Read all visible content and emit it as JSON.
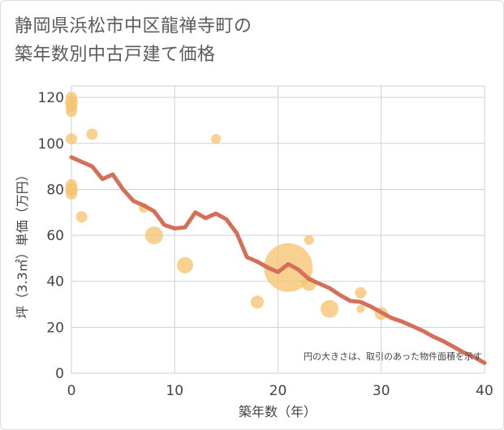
{
  "title": {
    "line1": "静岡県浜松市中区龍禅寺町の",
    "line2": "築年数別中古戸建て価格"
  },
  "chart_data": {
    "type": "scatter+line",
    "xlabel": "築年数（年）",
    "ylabel": "坪（3.3㎡）単価（万円）",
    "xlim": [
      0,
      40
    ],
    "ylim": [
      0,
      125
    ],
    "xticks": [
      "0",
      "10",
      "20",
      "30",
      "40"
    ],
    "yticks": [
      "0",
      "20",
      "40",
      "60",
      "80",
      "100",
      "120"
    ],
    "grid": true,
    "note": "円の大きさは、取引のあった物件面積を示す",
    "bubble_color": "#f5c26b",
    "line_color": "#d4705a",
    "bubbles": [
      {
        "x": 0,
        "y": 120,
        "size": 7
      },
      {
        "x": 0,
        "y": 118,
        "size": 8
      },
      {
        "x": 0,
        "y": 116,
        "size": 7
      },
      {
        "x": 0,
        "y": 114,
        "size": 7
      },
      {
        "x": 0,
        "y": 102,
        "size": 7
      },
      {
        "x": 0,
        "y": 82,
        "size": 7
      },
      {
        "x": 0,
        "y": 80,
        "size": 8
      },
      {
        "x": 0,
        "y": 78,
        "size": 7
      },
      {
        "x": 1,
        "y": 68,
        "size": 7
      },
      {
        "x": 2,
        "y": 104,
        "size": 7
      },
      {
        "x": 7,
        "y": 72,
        "size": 6
      },
      {
        "x": 8,
        "y": 60,
        "size": 11
      },
      {
        "x": 11,
        "y": 47,
        "size": 10
      },
      {
        "x": 14,
        "y": 102,
        "size": 6
      },
      {
        "x": 18,
        "y": 31,
        "size": 8
      },
      {
        "x": 21,
        "y": 46,
        "size": 30
      },
      {
        "x": 23,
        "y": 58,
        "size": 6
      },
      {
        "x": 23,
        "y": 39,
        "size": 9
      },
      {
        "x": 25,
        "y": 28,
        "size": 11
      },
      {
        "x": 28,
        "y": 35,
        "size": 7
      },
      {
        "x": 28,
        "y": 28,
        "size": 5
      },
      {
        "x": 30,
        "y": 26,
        "size": 8
      }
    ],
    "trend": {
      "x": [
        0,
        1,
        2,
        3,
        4,
        5,
        6,
        7,
        8,
        9,
        10,
        11,
        12,
        13,
        14,
        15,
        16,
        17,
        18,
        19,
        20,
        21,
        22,
        23,
        24,
        25,
        26,
        27,
        28,
        29,
        30,
        31,
        32,
        33,
        34,
        35,
        36,
        37,
        38,
        39,
        40
      ],
      "y": [
        94,
        92,
        90,
        84.5,
        86.5,
        80,
        75,
        73,
        70.5,
        64.5,
        63,
        63.5,
        70,
        67.5,
        69.5,
        67,
        61,
        50.5,
        48.5,
        46,
        44,
        47.5,
        45,
        41,
        39,
        37,
        34,
        31.5,
        31,
        29,
        26.5,
        24,
        22.5,
        20.5,
        18.5,
        16,
        14,
        11.5,
        9,
        7,
        4.5
      ]
    }
  }
}
